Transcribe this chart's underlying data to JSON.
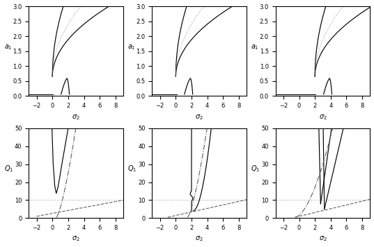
{
  "figsize": [
    5.37,
    3.56
  ],
  "dpi": 100,
  "top": {
    "xlim": [
      -3,
      9
    ],
    "ylim": [
      0,
      3
    ],
    "xticks": [
      -2,
      0,
      2,
      4,
      6,
      8
    ],
    "yticks": [
      0,
      0.5,
      1.0,
      1.5,
      2.0,
      2.5,
      3.0
    ],
    "xlabel": "$\\sigma_2$",
    "ylabel": "$a_1$"
  },
  "bottom": {
    "xlim": [
      -3,
      9
    ],
    "ylim": [
      0,
      50
    ],
    "xticks": [
      -2,
      0,
      2,
      4,
      6,
      8
    ],
    "yticks": [
      0,
      10,
      20,
      30,
      40,
      50
    ],
    "xlabel": "$\\sigma_2$",
    "ylabel": "$Q_1$"
  },
  "lw": 0.85,
  "black": "#000000",
  "gray": "#666666",
  "lgray": "#aaaaaa"
}
